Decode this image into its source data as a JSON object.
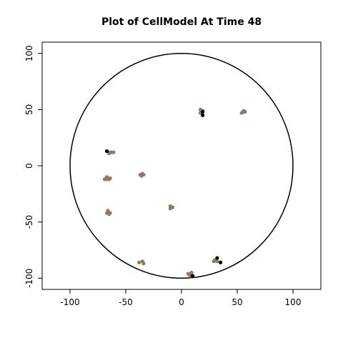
{
  "chart_data": {
    "type": "scatter",
    "title": "Plot of CellModel At Time 48",
    "xlabel": "",
    "ylabel": "",
    "xlim": [
      -125,
      125
    ],
    "ylim": [
      -110,
      110
    ],
    "x_ticks": [
      -100,
      -50,
      0,
      50,
      100
    ],
    "y_ticks": [
      -100,
      -50,
      0,
      50,
      100
    ],
    "x_tick_labels": [
      "-100",
      "-50",
      "0",
      "50",
      "100"
    ],
    "y_tick_labels": [
      "-100",
      "-50",
      "0",
      "50",
      "100"
    ],
    "grid": false,
    "boundary_circle": {
      "cx": 0,
      "cy": 0,
      "r": 100,
      "color": "#000000"
    },
    "colors": {
      "cell": "#8c7b6b",
      "marked": "#000000"
    },
    "series": [
      {
        "color": "#8c7b6b",
        "points": [
          [
            17,
            50
          ],
          [
            17,
            47
          ],
          [
            19,
            49
          ],
          [
            54,
            47
          ],
          [
            56,
            49
          ],
          [
            57,
            48
          ],
          [
            55,
            48
          ],
          [
            -63,
            12
          ],
          [
            -65,
            11
          ],
          [
            -61,
            12
          ],
          [
            -65,
            12
          ],
          [
            -69,
            -12
          ],
          [
            -67,
            -10
          ],
          [
            -65,
            -12
          ],
          [
            -64,
            -11
          ],
          [
            -67,
            -12
          ],
          [
            -37,
            -8
          ],
          [
            -35,
            -7
          ],
          [
            -34,
            -8
          ],
          [
            -36,
            -9
          ],
          [
            -10,
            -36
          ],
          [
            -8,
            -37
          ],
          [
            -10,
            -38
          ],
          [
            -66,
            -40
          ],
          [
            -64,
            -42
          ],
          [
            -65,
            -43
          ],
          [
            -67,
            -42
          ],
          [
            -38,
            -86
          ],
          [
            -35,
            -85
          ],
          [
            -34,
            -87
          ],
          [
            6,
            -96
          ],
          [
            9,
            -95
          ],
          [
            8,
            -98
          ],
          [
            7,
            -97
          ],
          [
            30,
            -84
          ],
          [
            32,
            -85
          ],
          [
            29,
            -85
          ]
        ]
      },
      {
        "color": "#000000",
        "points": [
          [
            19,
            48
          ],
          [
            19,
            45
          ],
          [
            -67,
            13
          ],
          [
            32,
            -82
          ],
          [
            35,
            -86
          ],
          [
            10,
            -98
          ]
        ]
      }
    ]
  }
}
